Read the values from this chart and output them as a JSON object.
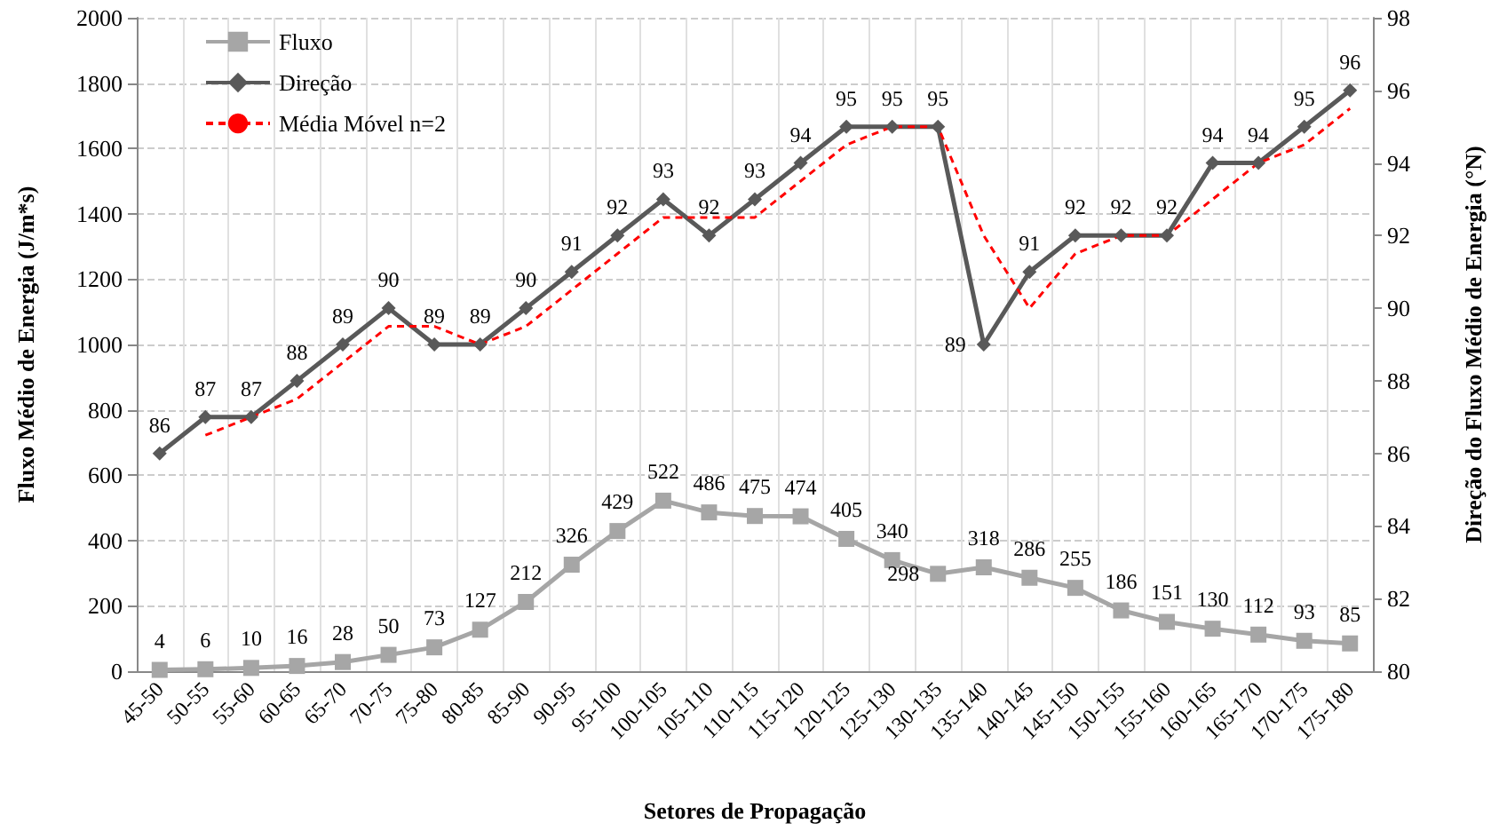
{
  "chart_data": {
    "type": "line",
    "xlabel": "Setores de Propagação",
    "ylabel": "Fluxo Médio de Energia (J/m*s)",
    "y2label": "Direção do Fluxo Médio de Energia (°N)",
    "categories": [
      "45-50",
      "50-55",
      "55-60",
      "60-65",
      "65-70",
      "70-75",
      "75-80",
      "80-85",
      "85-90",
      "90-95",
      "95-100",
      "100-105",
      "105-110",
      "110-115",
      "115-120",
      "120-125",
      "125-130",
      "130-135",
      "135-140",
      "140-145",
      "145-150",
      "150-155",
      "155-160",
      "160-165",
      "165-170",
      "170-175",
      "175-180"
    ],
    "series": [
      {
        "name": "Fluxo",
        "color": "#a6a6a6",
        "marker": "square",
        "line_style": "solid",
        "values": [
          4,
          6,
          10,
          16,
          28,
          50,
          73,
          127,
          212,
          326,
          429,
          522,
          486,
          475,
          474,
          405,
          340,
          298,
          318,
          286,
          255,
          186,
          151,
          130,
          112,
          93,
          85
        ],
        "value_labels": [
          "4",
          "6",
          "10",
          "16",
          "28",
          "50",
          "73",
          "127",
          "212",
          "326",
          "429",
          "522",
          "486",
          "475",
          "474",
          "405",
          "340",
          "298",
          "318",
          "286",
          "255",
          "186",
          "151",
          "130",
          "112",
          "93",
          "85"
        ]
      },
      {
        "name": "Direção",
        "color": "#595959",
        "marker": "diamond",
        "line_style": "solid",
        "axis": "y2",
        "values": [
          86,
          87,
          87,
          88,
          89,
          90,
          89,
          89,
          90,
          91,
          92,
          93,
          92,
          93,
          94,
          95,
          95,
          95,
          89,
          91,
          92,
          92,
          92,
          94,
          94,
          95,
          96
        ],
        "value_labels": [
          "86",
          "87",
          "87",
          "88",
          "89",
          "90",
          "89",
          "89",
          "90",
          "91",
          "92",
          "93",
          "92",
          "93",
          "94",
          "95",
          "95",
          "95",
          "89",
          "91",
          "92",
          "92",
          "92",
          "94",
          "94",
          "95",
          "96"
        ]
      },
      {
        "name": "Média Móvel n=2",
        "color": "#ff0000",
        "marker": "none",
        "line_style": "dashed",
        "axis": "y2",
        "values": [
          null,
          86.5,
          87,
          87.5,
          88.5,
          89.5,
          89.5,
          89,
          89.5,
          90.5,
          91.5,
          92.5,
          92.5,
          92.5,
          93.5,
          94.5,
          95,
          95,
          92,
          90,
          91.5,
          92,
          92,
          93,
          94,
          94.5,
          95.5
        ]
      }
    ],
    "ylim": [
      0,
      2000
    ],
    "yticks": [
      0,
      200,
      400,
      600,
      800,
      1000,
      1200,
      1400,
      1600,
      1800,
      2000
    ],
    "y2lim": [
      80,
      98
    ],
    "y2ticks": [
      80,
      82,
      84,
      86,
      88,
      90,
      92,
      94,
      96,
      98
    ],
    "grid": true,
    "legend": "top left"
  }
}
